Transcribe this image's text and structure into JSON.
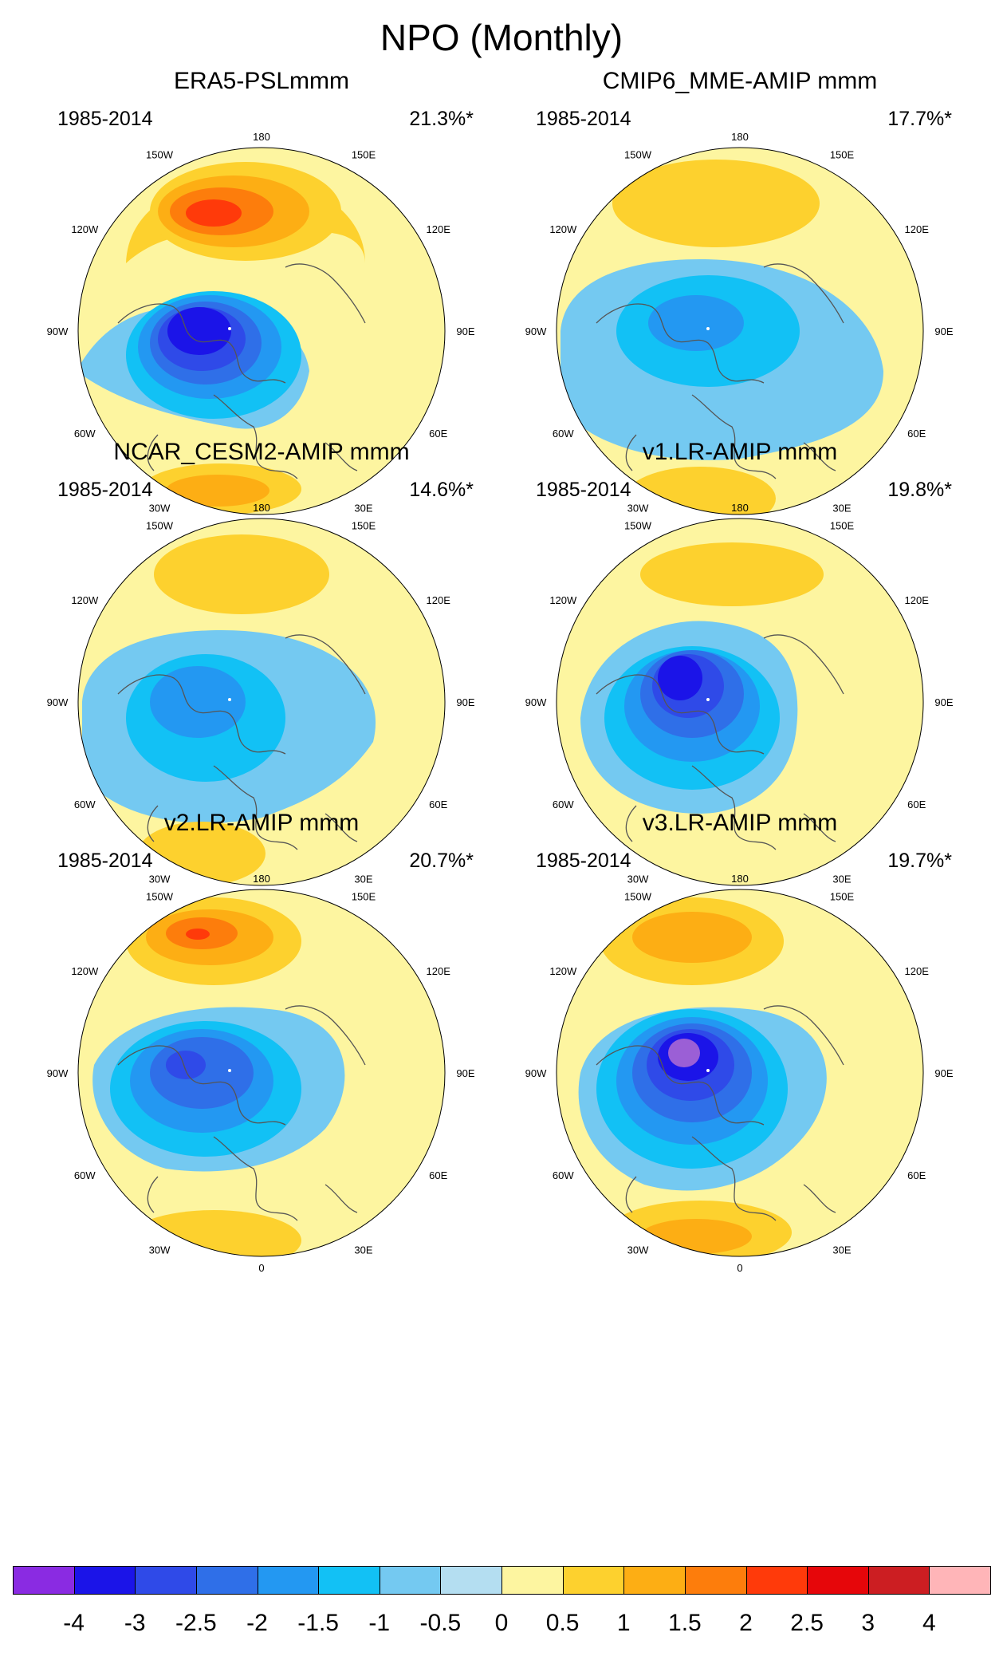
{
  "title": "NPO (Monthly)",
  "longitude_labels": [
    "180",
    "150E",
    "120E",
    "90E",
    "60E",
    "30E",
    "0",
    "30W",
    "60W",
    "90W",
    "120W",
    "150W"
  ],
  "panels": [
    {
      "title": "ERA5-PSLmmm",
      "period": "1985-2014",
      "percent": "21.3%*"
    },
    {
      "title": "CMIP6_MME-AMIP  mmm",
      "period": "1985-2014",
      "percent": "17.7%*"
    },
    {
      "title": "NCAR_CESM2-AMIP  mmm",
      "period": "1985-2014",
      "percent": "14.6%*"
    },
    {
      "title": "v1.LR-AMIP  mmm",
      "period": "1985-2014",
      "percent": "19.8%*"
    },
    {
      "title": "v2.LR-AMIP  mmm",
      "period": "1985-2014",
      "percent": "20.7%*"
    },
    {
      "title": "v3.LR-AMIP  mmm",
      "period": "1985-2014",
      "percent": "19.7%*"
    }
  ],
  "colorbar": {
    "labels": [
      "-4",
      "-3",
      "-2.5",
      "-2",
      "-1.5",
      "-1",
      "-0.5",
      "0",
      "0.5",
      "1",
      "1.5",
      "2",
      "2.5",
      "3",
      "4"
    ],
    "colors": [
      "#8a2be2",
      "#1b14e8",
      "#2f4ae8",
      "#2f6fe8",
      "#2398f2",
      "#12c1f5",
      "#74c9f1",
      "#b4def1",
      "#fdf5a0",
      "#fdd12e",
      "#fdae14",
      "#fd7d0c",
      "#ff3a0a",
      "#e6060a",
      "#cc1e22",
      "#ffb5b8"
    ]
  }
}
